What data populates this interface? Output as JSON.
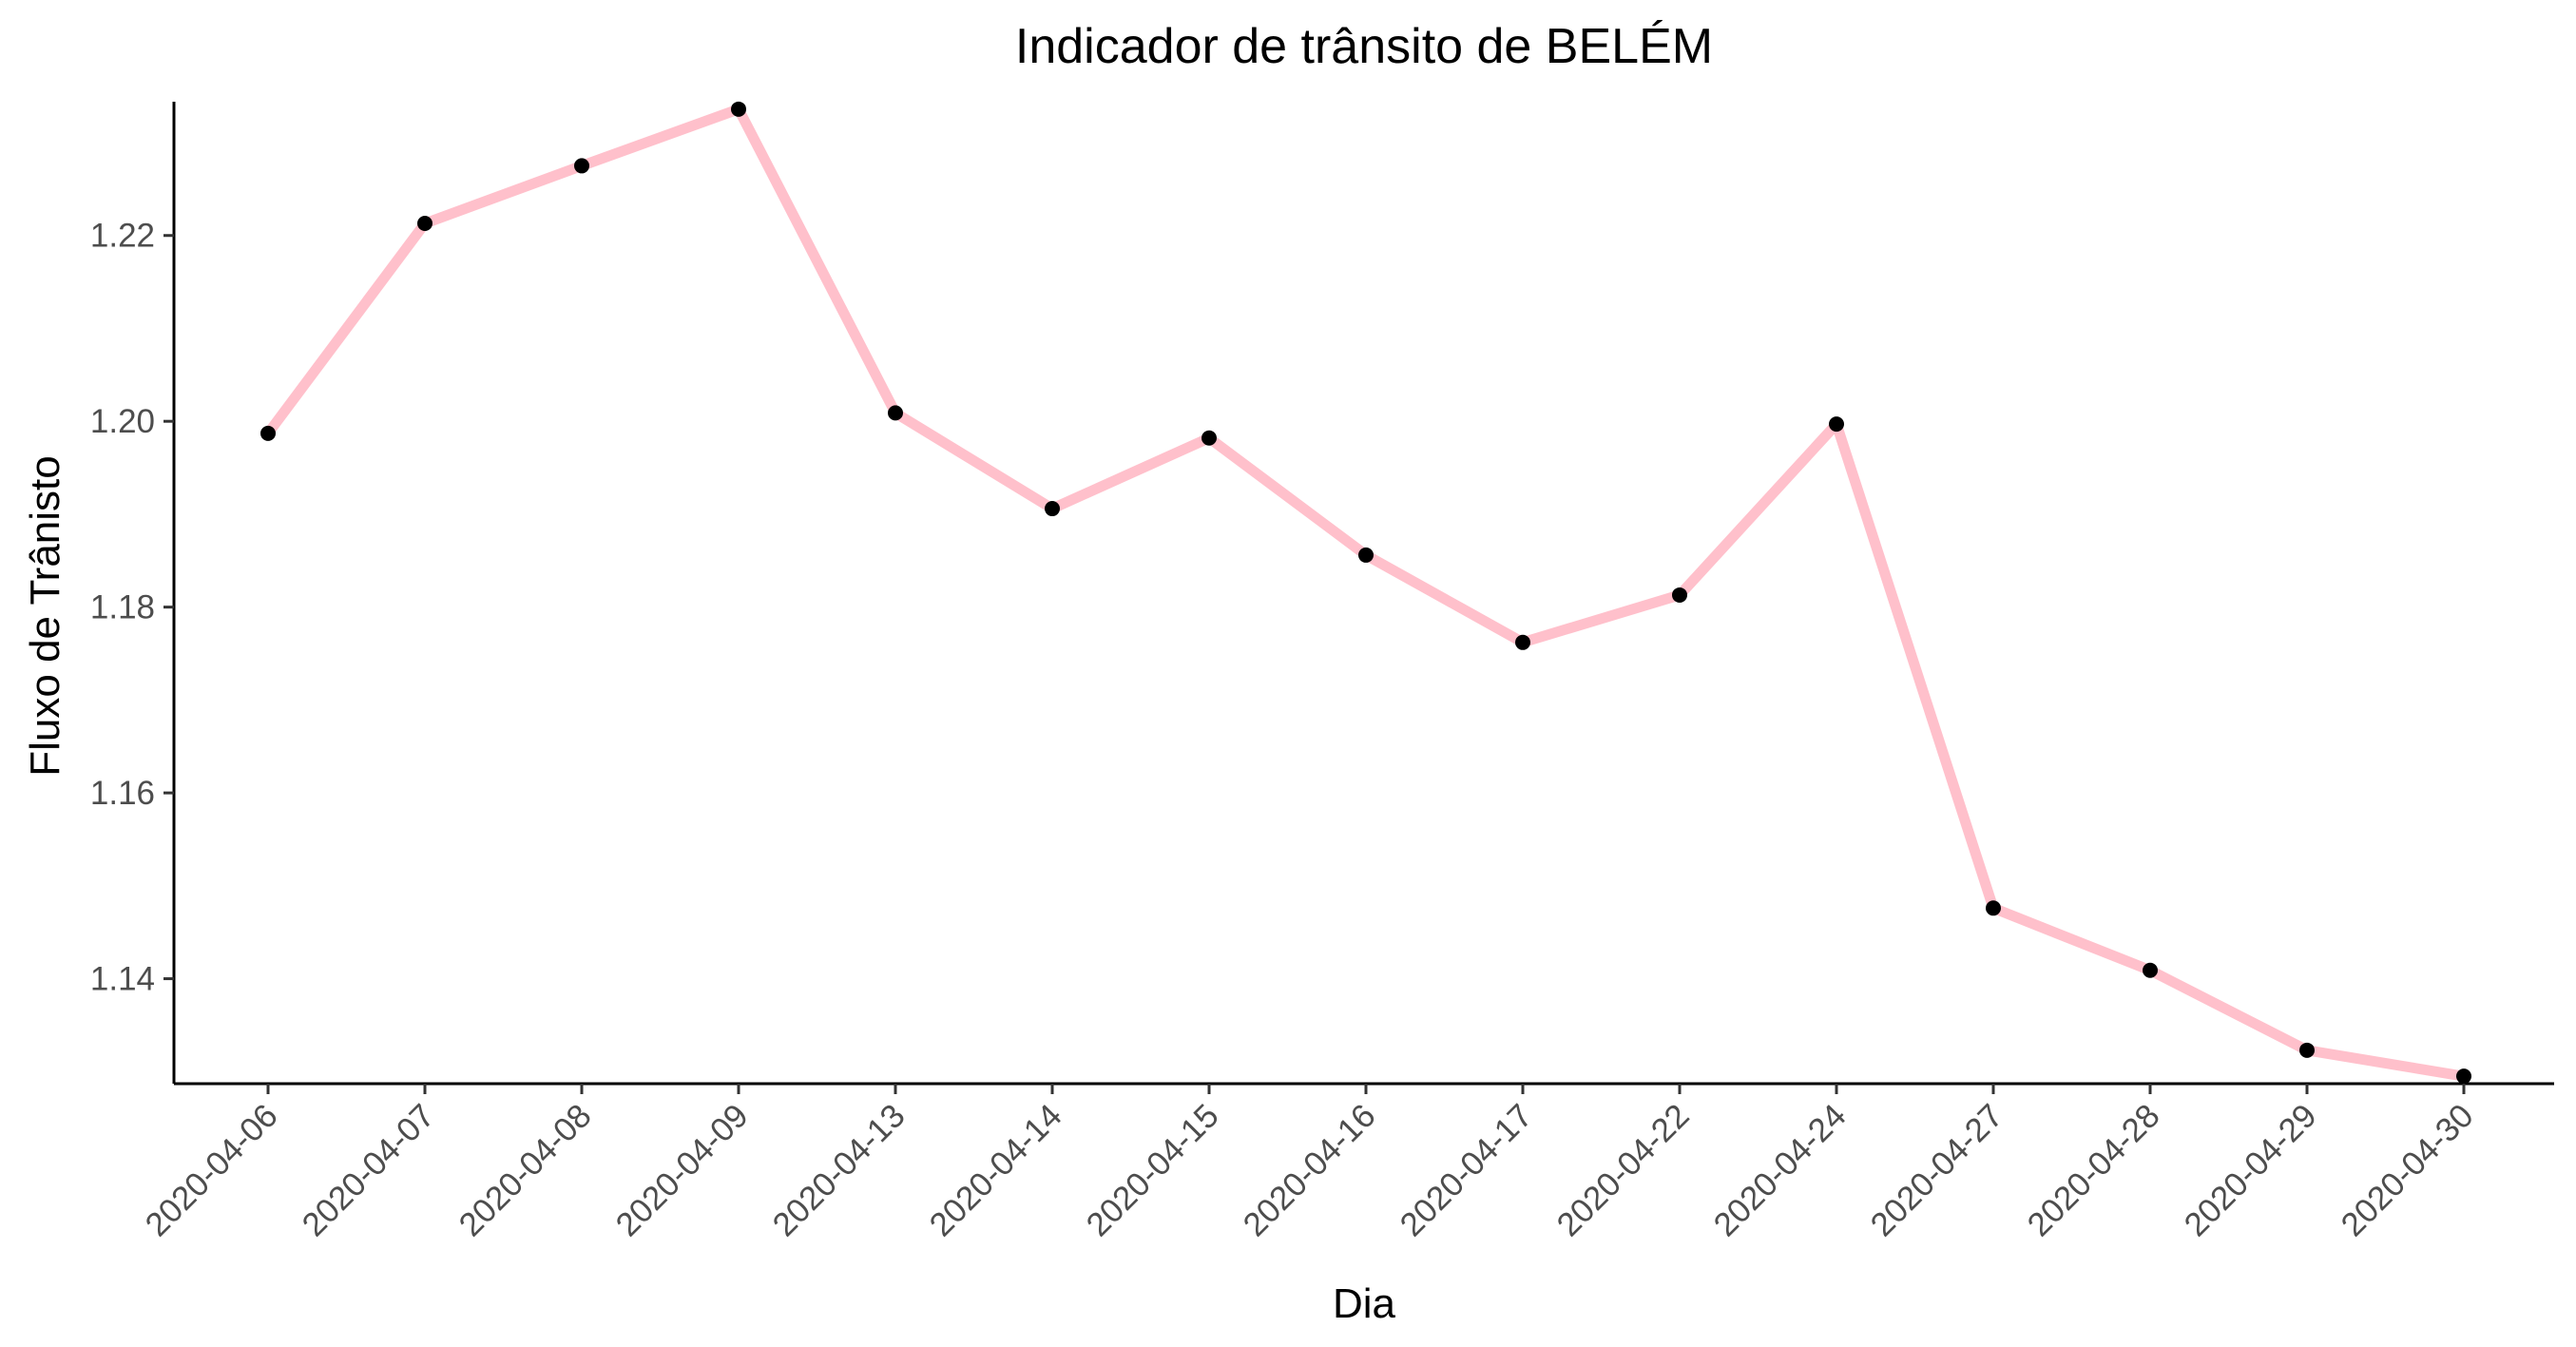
{
  "chart_data": {
    "type": "line",
    "title": "Indicador de trânsito de BELÉM",
    "xlabel": "Dia",
    "ylabel": "Fluxo de Trânisto",
    "categories": [
      "2020-04-06",
      "2020-04-07",
      "2020-04-08",
      "2020-04-09",
      "2020-04-13",
      "2020-04-14",
      "2020-04-15",
      "2020-04-16",
      "2020-04-17",
      "2020-04-22",
      "2020-04-24",
      "2020-04-27",
      "2020-04-28",
      "2020-04-29",
      "2020-04-30"
    ],
    "series": [
      {
        "values": [
          1.1987,
          1.2213,
          1.2275,
          1.2336,
          1.2009,
          1.1906,
          1.1982,
          1.1856,
          1.1762,
          1.1813,
          1.1997,
          1.1476,
          1.1409,
          1.1323,
          1.1295
        ],
        "line_color": "#ffc0cb",
        "point_color": "#000000"
      }
    ],
    "yticks": [
      "1.14",
      "1.16",
      "1.18",
      "1.20",
      "1.22"
    ],
    "ylim": [
      1.1287,
      1.2344
    ],
    "grid": false,
    "legend": "none"
  }
}
